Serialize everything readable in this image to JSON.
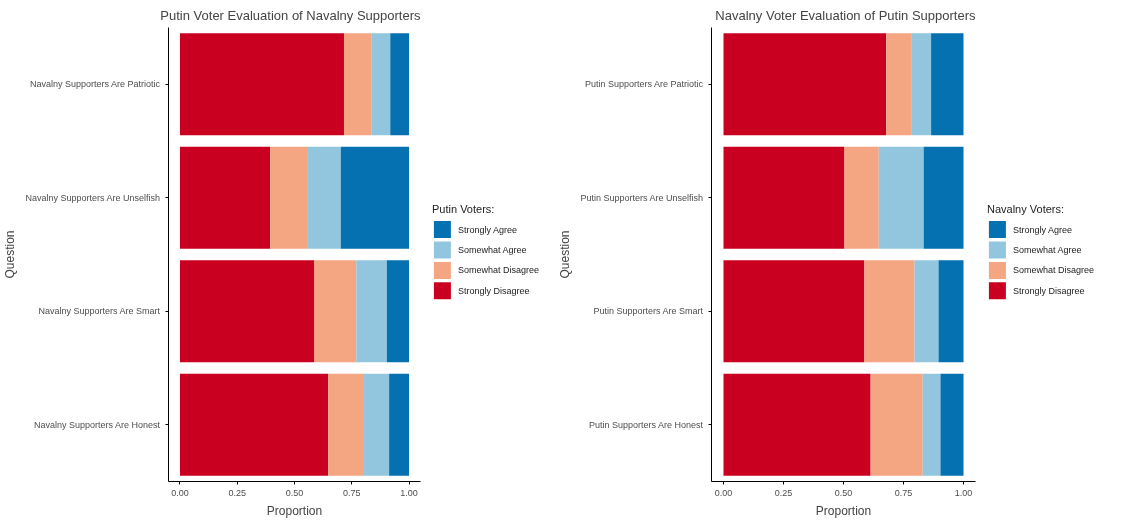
{
  "chart_data": [
    {
      "type": "bar",
      "orientation": "horizontal",
      "stacked": true,
      "title": "Putin Voter Evaluation of Navalny Supporters",
      "xlabel": "Proportion",
      "ylabel": "Question",
      "legend_title": "Putin Voters:",
      "legend": "right",
      "grid": false,
      "categories": [
        "Navalny Supporters Are Patriotic",
        "Navalny Supporters Are Unselfish",
        "Navalny Supporters Are Smart",
        "Navalny Supporters Are Honest"
      ],
      "xlim": [
        -0.05,
        1.05
      ],
      "xticks": [
        {
          "value": 0,
          "label": "0.00"
        },
        {
          "value": 0.25,
          "label": "0.25"
        },
        {
          "value": 0.5,
          "label": "0.50"
        },
        {
          "value": 0.75,
          "label": "0.75"
        },
        {
          "value": 1,
          "label": "1.00"
        }
      ],
      "series": [
        {
          "name": "Strongly Disagree",
          "color": "#ca0020",
          "values": [
            0.716,
            0.394,
            0.587,
            0.647
          ]
        },
        {
          "name": "Somewhat Disagree",
          "color": "#f4a582",
          "values": [
            0.119,
            0.161,
            0.183,
            0.156
          ]
        },
        {
          "name": "Somewhat Agree",
          "color": "#92c5de",
          "values": [
            0.083,
            0.147,
            0.133,
            0.11
          ]
        },
        {
          "name": "Strongly Agree",
          "color": "#0571b0",
          "values": [
            0.082,
            0.298,
            0.097,
            0.087
          ]
        }
      ]
    },
    {
      "type": "bar",
      "orientation": "horizontal",
      "stacked": true,
      "title": "Navalny Voter Evaluation of Putin Supporters",
      "xlabel": "Proportion",
      "ylabel": "Question",
      "legend_title": "Navalny Voters:",
      "legend": "right",
      "grid": false,
      "categories": [
        "Putin Supporters Are Patriotic",
        "Putin Supporters Are Unselfish",
        "Putin Supporters Are Smart",
        "Putin Supporters Are Honest"
      ],
      "xlim": [
        -0.05,
        1.05
      ],
      "xticks": [
        {
          "value": 0,
          "label": "0.00"
        },
        {
          "value": 0.25,
          "label": "0.25"
        },
        {
          "value": 0.5,
          "label": "0.50"
        },
        {
          "value": 0.75,
          "label": "0.75"
        },
        {
          "value": 1,
          "label": "1.00"
        }
      ],
      "series": [
        {
          "name": "Strongly Disagree",
          "color": "#ca0020",
          "values": [
            0.678,
            0.504,
            0.587,
            0.613
          ]
        },
        {
          "name": "Somewhat Disagree",
          "color": "#f4a582",
          "values": [
            0.104,
            0.143,
            0.209,
            0.217
          ]
        },
        {
          "name": "Somewhat Agree",
          "color": "#92c5de",
          "values": [
            0.083,
            0.187,
            0.1,
            0.074
          ]
        },
        {
          "name": "Strongly Agree",
          "color": "#0571b0",
          "values": [
            0.135,
            0.166,
            0.104,
            0.096
          ]
        }
      ]
    }
  ]
}
